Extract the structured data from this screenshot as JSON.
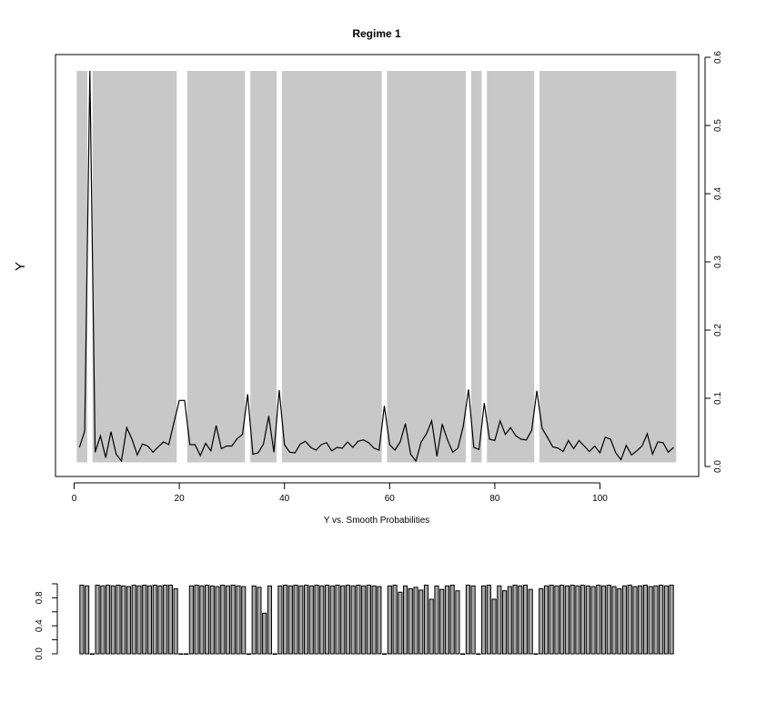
{
  "chart_data": [
    {
      "type": "line",
      "title": "Regime 1",
      "subtitle": "Y vs. Smooth Probabilities",
      "ylabel": "Y",
      "xlabel": "",
      "xlim": [
        0,
        114
      ],
      "ylim": [
        0,
        0.6
      ],
      "x_ticks": [
        0,
        20,
        40,
        60,
        80,
        100
      ],
      "y_ticks": [
        0.0,
        0.1,
        0.2,
        0.3,
        0.4,
        0.5,
        0.6
      ],
      "y_axis_side": "right",
      "shading_color": "#c8c8c8",
      "line_color": "#000000",
      "regime_intervals": [
        [
          1,
          2
        ],
        [
          4,
          19
        ],
        [
          22,
          32
        ],
        [
          34,
          38
        ],
        [
          40,
          58
        ],
        [
          60,
          74
        ],
        [
          76,
          77
        ],
        [
          79,
          87
        ],
        [
          89,
          114
        ]
      ],
      "series": [
        {
          "x": [
            1,
            2,
            3,
            4,
            5,
            6,
            7,
            8,
            9,
            10,
            11,
            12,
            13,
            14,
            15,
            16,
            17,
            18,
            19,
            20,
            21,
            22,
            23,
            24,
            25,
            26,
            27,
            28,
            29,
            30,
            31,
            32,
            33,
            34,
            35,
            36,
            37,
            38,
            39,
            40,
            41,
            42,
            43,
            44,
            45,
            46,
            47,
            48,
            49,
            50,
            51,
            52,
            53,
            54,
            55,
            56,
            57,
            58,
            59,
            60,
            61,
            62,
            63,
            64,
            65,
            66,
            67,
            68,
            69,
            70,
            71,
            72,
            73,
            74,
            75,
            76,
            77,
            78,
            79,
            80,
            81,
            82,
            83,
            84,
            85,
            86,
            87,
            88,
            89,
            90,
            91,
            92,
            93,
            94,
            95,
            96,
            97,
            98,
            99,
            100,
            101,
            102,
            103,
            104,
            105,
            106,
            107,
            108,
            109,
            110,
            111,
            112,
            113,
            114
          ],
          "y": [
            0.028,
            0.052,
            0.58,
            0.021,
            0.045,
            0.013,
            0.051,
            0.018,
            0.008,
            0.057,
            0.04,
            0.017,
            0.033,
            0.03,
            0.021,
            0.029,
            0.036,
            0.032,
            0.065,
            0.097,
            0.097,
            0.032,
            0.032,
            0.016,
            0.034,
            0.023,
            0.06,
            0.026,
            0.03,
            0.03,
            0.041,
            0.047,
            0.106,
            0.018,
            0.02,
            0.033,
            0.074,
            0.021,
            0.112,
            0.032,
            0.021,
            0.02,
            0.033,
            0.037,
            0.028,
            0.024,
            0.032,
            0.035,
            0.023,
            0.028,
            0.027,
            0.036,
            0.028,
            0.037,
            0.039,
            0.035,
            0.027,
            0.024,
            0.089,
            0.032,
            0.024,
            0.036,
            0.063,
            0.018,
            0.008,
            0.036,
            0.048,
            0.067,
            0.015,
            0.062,
            0.039,
            0.021,
            0.027,
            0.059,
            0.113,
            0.028,
            0.025,
            0.093,
            0.04,
            0.038,
            0.067,
            0.047,
            0.057,
            0.045,
            0.04,
            0.039,
            0.053,
            0.111,
            0.056,
            0.043,
            0.029,
            0.027,
            0.022,
            0.038,
            0.026,
            0.038,
            0.03,
            0.022,
            0.03,
            0.02,
            0.043,
            0.04,
            0.02,
            0.01,
            0.031,
            0.017,
            0.023,
            0.03,
            0.048,
            0.018,
            0.036,
            0.035,
            0.021,
            0.028
          ]
        }
      ]
    },
    {
      "type": "bar",
      "title": "",
      "xlabel": "",
      "ylabel": "",
      "ylim": [
        0,
        1
      ],
      "y_ticks": [
        0.0,
        0.4,
        0.8
      ],
      "bar_fill": "#a8a8a8",
      "bar_stroke": "#000000",
      "series": [
        {
          "values": [
            0.98,
            0.97,
            0,
            0.98,
            0.97,
            0.98,
            0.97,
            0.98,
            0.97,
            0.96,
            0.98,
            0.97,
            0.98,
            0.97,
            0.98,
            0.97,
            0.98,
            0.98,
            0.93,
            0,
            0,
            0.97,
            0.98,
            0.97,
            0.98,
            0.97,
            0.96,
            0.98,
            0.97,
            0.98,
            0.97,
            0.96,
            0,
            0.97,
            0.95,
            0.58,
            0.97,
            0,
            0.97,
            0.98,
            0.97,
            0.98,
            0.97,
            0.98,
            0.97,
            0.98,
            0.97,
            0.98,
            0.97,
            0.98,
            0.97,
            0.98,
            0.97,
            0.98,
            0.97,
            0.98,
            0.97,
            0.96,
            0,
            0.97,
            0.98,
            0.88,
            0.97,
            0.93,
            0.95,
            0.91,
            0.98,
            0.78,
            0.97,
            0.92,
            0.97,
            0.98,
            0.9,
            0,
            0.98,
            0.97,
            0,
            0.97,
            0.98,
            0.78,
            0.97,
            0.9,
            0.96,
            0.98,
            0.97,
            0.98,
            0.92,
            0,
            0.93,
            0.97,
            0.98,
            0.97,
            0.98,
            0.97,
            0.98,
            0.97,
            0.98,
            0.97,
            0.96,
            0.98,
            0.97,
            0.98,
            0.96,
            0.93,
            0.97,
            0.98,
            0.96,
            0.97,
            0.98,
            0.96,
            0.97,
            0.98,
            0.97,
            0.98
          ]
        }
      ]
    }
  ]
}
